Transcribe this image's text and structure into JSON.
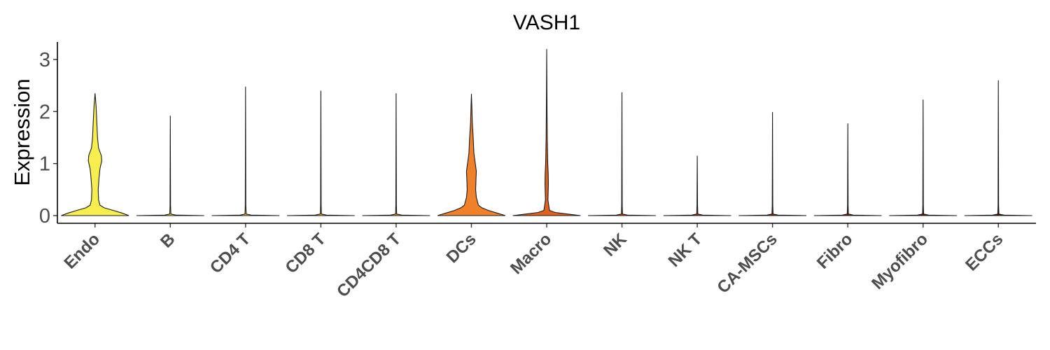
{
  "chart_data": {
    "type": "violin",
    "title": "VASH1",
    "xlabel": "",
    "ylabel": "Expression",
    "ylim": [
      -0.15,
      3.35
    ],
    "yticks": [
      0,
      1,
      2,
      3
    ],
    "categories": [
      "Endo",
      "B",
      "CD4 T",
      "CD8 T",
      "CD4CD8 T",
      "DCs",
      "Macro",
      "NK",
      "NK T",
      "CA-MSCs",
      "Fibro",
      "Myofibro",
      "ECCs"
    ],
    "max_values": [
      2.35,
      1.92,
      2.48,
      2.4,
      2.35,
      2.34,
      3.2,
      2.37,
      1.15,
      1.99,
      1.77,
      2.23,
      2.6
    ],
    "colors": [
      "#f6ee4e",
      "#f6e04a",
      "#f5cc42",
      "#f3b53b",
      "#f19c33",
      "#ee8129",
      "#e0611d",
      "#cf4a17",
      "#b83514",
      "#9f2512",
      "#871a10",
      "#6e140f",
      "#59100e"
    ],
    "violins": [
      {
        "category": "Endo",
        "profile": [
          [
            0,
            0.48
          ],
          [
            0.05,
            0.38
          ],
          [
            0.1,
            0.26
          ],
          [
            0.15,
            0.13
          ],
          [
            0.2,
            0.07
          ],
          [
            0.3,
            0.05
          ],
          [
            0.5,
            0.045
          ],
          [
            0.7,
            0.055
          ],
          [
            0.9,
            0.07
          ],
          [
            1.05,
            0.095
          ],
          [
            1.15,
            0.09
          ],
          [
            1.3,
            0.05
          ],
          [
            1.5,
            0.035
          ],
          [
            1.8,
            0.025
          ],
          [
            2.1,
            0.015
          ],
          [
            2.35,
            0
          ]
        ]
      },
      {
        "category": "B",
        "profile": [
          [
            0,
            0.48
          ],
          [
            0.01,
            0.08
          ],
          [
            0.03,
            0.008
          ],
          [
            0.2,
            0.004
          ],
          [
            1.92,
            0
          ]
        ]
      },
      {
        "category": "CD4 T",
        "profile": [
          [
            0,
            0.48
          ],
          [
            0.01,
            0.08
          ],
          [
            0.03,
            0.008
          ],
          [
            0.2,
            0.004
          ],
          [
            2.48,
            0
          ]
        ]
      },
      {
        "category": "CD8 T",
        "profile": [
          [
            0,
            0.48
          ],
          [
            0.01,
            0.08
          ],
          [
            0.03,
            0.008
          ],
          [
            0.2,
            0.004
          ],
          [
            2.4,
            0
          ]
        ]
      },
      {
        "category": "CD4CD8 T",
        "profile": [
          [
            0,
            0.48
          ],
          [
            0.01,
            0.08
          ],
          [
            0.03,
            0.008
          ],
          [
            0.2,
            0.004
          ],
          [
            2.35,
            0
          ]
        ]
      },
      {
        "category": "DCs",
        "profile": [
          [
            0,
            0.48
          ],
          [
            0.05,
            0.36
          ],
          [
            0.1,
            0.24
          ],
          [
            0.15,
            0.15
          ],
          [
            0.2,
            0.1
          ],
          [
            0.35,
            0.07
          ],
          [
            0.5,
            0.06
          ],
          [
            0.7,
            0.065
          ],
          [
            0.85,
            0.07
          ],
          [
            1.0,
            0.055
          ],
          [
            1.2,
            0.035
          ],
          [
            1.5,
            0.025
          ],
          [
            1.8,
            0.012
          ],
          [
            2.1,
            0.006
          ],
          [
            2.34,
            0
          ]
        ]
      },
      {
        "category": "Macro",
        "profile": [
          [
            0,
            0.48
          ],
          [
            0.03,
            0.3
          ],
          [
            0.06,
            0.12
          ],
          [
            0.1,
            0.04
          ],
          [
            0.3,
            0.018
          ],
          [
            0.6,
            0.024
          ],
          [
            0.8,
            0.022
          ],
          [
            1.0,
            0.015
          ],
          [
            1.5,
            0.008
          ],
          [
            2.0,
            0.005
          ],
          [
            3.2,
            0
          ]
        ]
      },
      {
        "category": "NK",
        "profile": [
          [
            0,
            0.48
          ],
          [
            0.01,
            0.08
          ],
          [
            0.03,
            0.008
          ],
          [
            0.2,
            0.004
          ],
          [
            2.37,
            0
          ]
        ]
      },
      {
        "category": "NK T",
        "profile": [
          [
            0,
            0.48
          ],
          [
            0.01,
            0.08
          ],
          [
            0.03,
            0.008
          ],
          [
            0.2,
            0.004
          ],
          [
            1.15,
            0
          ]
        ]
      },
      {
        "category": "CA-MSCs",
        "profile": [
          [
            0,
            0.48
          ],
          [
            0.01,
            0.08
          ],
          [
            0.03,
            0.008
          ],
          [
            0.2,
            0.004
          ],
          [
            1.99,
            0
          ]
        ]
      },
      {
        "category": "Fibro",
        "profile": [
          [
            0,
            0.48
          ],
          [
            0.01,
            0.08
          ],
          [
            0.03,
            0.008
          ],
          [
            0.2,
            0.004
          ],
          [
            1.77,
            0
          ]
        ]
      },
      {
        "category": "Myofibro",
        "profile": [
          [
            0,
            0.48
          ],
          [
            0.01,
            0.08
          ],
          [
            0.03,
            0.008
          ],
          [
            0.2,
            0.004
          ],
          [
            2.23,
            0
          ]
        ]
      },
      {
        "category": "ECCs",
        "profile": [
          [
            0,
            0.48
          ],
          [
            0.01,
            0.08
          ],
          [
            0.03,
            0.008
          ],
          [
            0.2,
            0.004
          ],
          [
            2.6,
            0
          ]
        ]
      }
    ],
    "grid": false,
    "legend": "none"
  }
}
